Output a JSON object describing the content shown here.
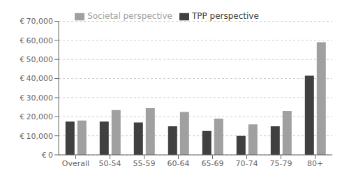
{
  "chart_data": {
    "type": "bar",
    "categories": [
      "Overall",
      "50-54",
      "55-59",
      "60-64",
      "65-69",
      "70-74",
      "75-79",
      "80+"
    ],
    "series": [
      {
        "name": "TPP perspective",
        "color": "#404040",
        "values": [
          17500,
          17500,
          17000,
          15000,
          12500,
          10000,
          15000,
          41500
        ]
      },
      {
        "name": "Societal perspective",
        "color": "#a0a0a0",
        "values": [
          18000,
          23500,
          24500,
          22500,
          19000,
          16000,
          23000,
          59000
        ]
      }
    ],
    "ylim": [
      0,
      70000
    ],
    "yticks": [
      {
        "value": 0,
        "label": "€ 0"
      },
      {
        "value": 10000,
        "label": "€ 10,000"
      },
      {
        "value": 20000,
        "label": "€ 20,000"
      },
      {
        "value": 30000,
        "label": "€ 30,000"
      },
      {
        "value": 40000,
        "label": "€ 40,000"
      },
      {
        "value": 50000,
        "label": "€ 50,000"
      },
      {
        "value": 60000,
        "label": "€ 60,000"
      },
      {
        "value": 70000,
        "label": "€ 70,000"
      }
    ],
    "grid": true,
    "legend": "top"
  }
}
